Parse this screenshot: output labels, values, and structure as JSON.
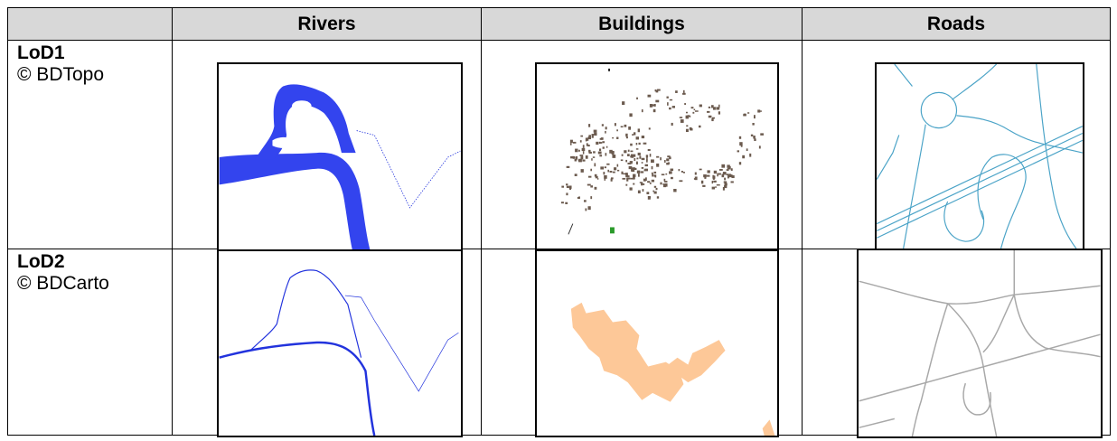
{
  "headers": {
    "corner": "",
    "rivers": "Rivers",
    "buildings": "Buildings",
    "roads": "Roads"
  },
  "rows": [
    {
      "lod": "LoD1",
      "source": "© BDTopo"
    },
    {
      "lod": "LoD2",
      "source": "© BDCarto"
    }
  ],
  "colors": {
    "header_bg": "#d8d8d8",
    "river_fill": "#3344ee",
    "river_line": "#2233dd",
    "building_lod1": "#6b5a4e",
    "building_lod2": "#fdc898",
    "road_lod1": "#4aa3c7",
    "road_lod2": "#a8a8a8"
  },
  "icons": {
    "lod1_rivers": "river-polygon-map",
    "lod1_buildings": "building-footprints-map",
    "lod1_roads": "road-network-map",
    "lod2_rivers": "river-line-map",
    "lod2_buildings": "urban-area-map",
    "lod2_roads": "generalized-road-map"
  }
}
